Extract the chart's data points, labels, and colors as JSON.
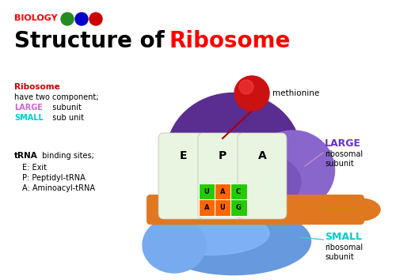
{
  "bg_color": "#ffffff",
  "biology_label": "BIOLOGY",
  "green_dot": "#228B22",
  "blue_dot": "#0000cc",
  "red_dot": "#cc0000",
  "title_black": "Structure of ",
  "title_red": "Ribosome",
  "large_purple_dark": "#5a2d91",
  "large_purple_mid": "#7b52ab",
  "large_purple_right": "#8866cc",
  "mrna_color": "#e07820",
  "small_color1": "#5599ee",
  "small_color2": "#88ccff",
  "small_color_teal": "#44aacc",
  "trna_fill": "#e8f5e0",
  "methionine_red": "#cc1111",
  "methionine_highlight": "#ff4444",
  "stem_color": "#aa0000",
  "codon_green": "#22cc00",
  "codon_orange": "#ff6600",
  "left_ribosome_color": "#cc0000",
  "left_large_color": "#cc66cc",
  "left_small_color": "#00cccc",
  "right_large_color": "#6633cc",
  "right_mrna_color": "#996600",
  "right_small_color": "#00cccc",
  "line_large_color": "#cc88cc",
  "line_small_color": "#44cccc",
  "line_mrna_color": "#cc8800"
}
